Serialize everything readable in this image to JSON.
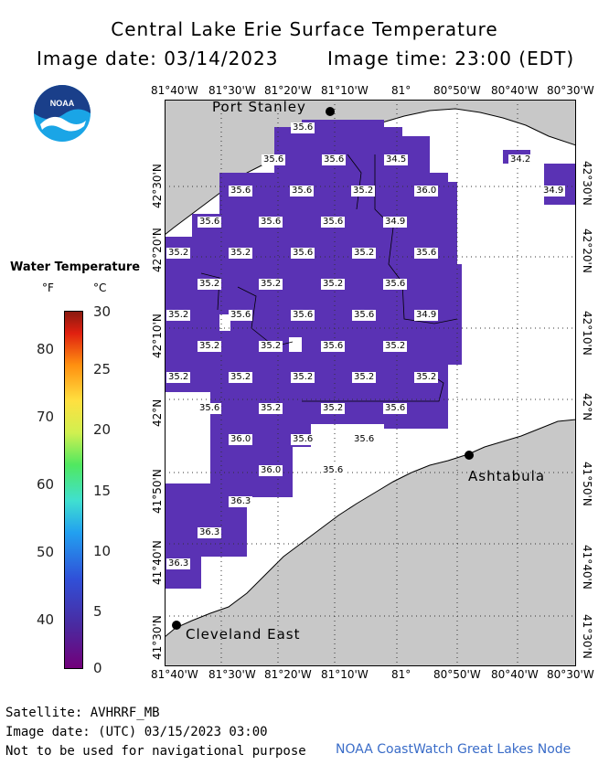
{
  "header": {
    "title": "Central Lake Erie Surface Temperature",
    "image_date": "Image date: 03/14/2023",
    "image_time": "Image time: 23:00 (EDT)"
  },
  "logo": {
    "text": "NOAA"
  },
  "axes": {
    "longitude_ticks": [
      "81°40'W",
      "81°30'W",
      "81°20'W",
      "81°10'W",
      "81°",
      "80°50'W",
      "80°40'W",
      "80°30'W"
    ],
    "latitude_ticks": [
      "42°30'N",
      "42°20'N",
      "42°10'N",
      "42°N",
      "41°50'N",
      "41°40'N",
      "41°30'N"
    ]
  },
  "places": [
    {
      "name": "Port Stanley"
    },
    {
      "name": "Ashtabula"
    },
    {
      "name": "Cleveland East"
    }
  ],
  "temperature_labels": [
    "35.6",
    "35.6",
    "35.6",
    "34.5",
    "34.2",
    "34.9",
    "35.6",
    "35.6",
    "35.2",
    "36.0",
    "35.6",
    "35.6",
    "35.6",
    "34.9",
    "35.2",
    "35.2",
    "35.6",
    "35.2",
    "35.6",
    "35.2",
    "35.2",
    "35.2",
    "35.6",
    "35.2",
    "35.6",
    "35.6",
    "35.6",
    "34.9",
    "35.2",
    "35.2",
    "35.6",
    "35.2",
    "35.2",
    "35.2",
    "35.2",
    "35.2",
    "35.2",
    "35.6",
    "35.2",
    "35.2",
    "35.6",
    "36.0",
    "35.6",
    "35.6",
    "36.0",
    "35.6",
    "36.3",
    "36.3",
    "36.3"
  ],
  "legend": {
    "title": "Water Temperature",
    "unit_f": "°F",
    "unit_c": "°C",
    "fahrenheit_ticks": [
      "80",
      "70",
      "60",
      "50",
      "40"
    ],
    "celsius_ticks": [
      "30",
      "25",
      "20",
      "15",
      "10",
      "5",
      "0"
    ]
  },
  "footer": {
    "satellite": "Satellite: AVHRRF_MB",
    "utc_date": "Image date: (UTC) 03/15/2023  03:00",
    "disclaimer": "Not to be used for navigational purpose",
    "credit": "NOAA CoastWatch Great Lakes Node"
  },
  "colors": {
    "land": "#c8c8c8",
    "water_cold": "#5a32b4",
    "coast": "#000000"
  }
}
